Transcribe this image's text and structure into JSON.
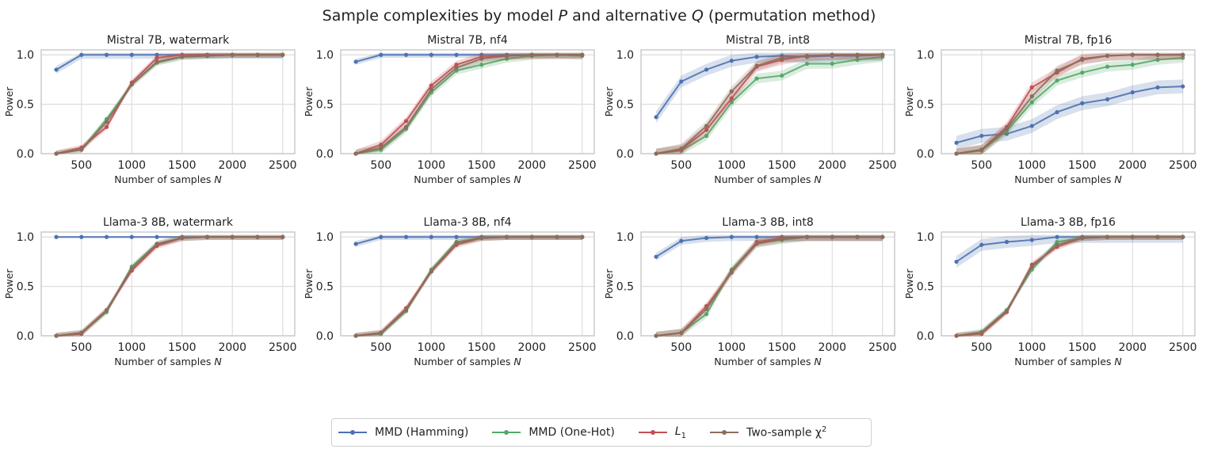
{
  "figure": {
    "title_prefix": "Sample complexities by model ",
    "title_p": "P",
    "title_mid": " and alternative ",
    "title_q": "Q",
    "title_suffix": " (permutation method)"
  },
  "legend": [
    {
      "name": "MMD (Hamming)",
      "color": "#4c72b0"
    },
    {
      "name": "MMD (One-Hot)",
      "color": "#55a868"
    },
    {
      "name": "L",
      "sub": "1",
      "color": "#c44e52"
    },
    {
      "name": "Two-sample χ",
      "sup": "2",
      "color": "#8c6d5c"
    }
  ],
  "chart_data": [
    {
      "type": "line",
      "title": "Mistral 7B, watermark",
      "xlabel": "Number of samples",
      "xvar": "N",
      "ylabel": "Power",
      "xticks": [
        500,
        1000,
        1500,
        2000,
        2500
      ],
      "yticks": [
        "0.0",
        "0.5",
        "1.0"
      ],
      "xlim": [
        100,
        2620
      ],
      "ylim": [
        0,
        1.05
      ],
      "x": [
        250,
        500,
        750,
        1000,
        1250,
        1500,
        1750,
        2000,
        2250,
        2500
      ],
      "series": [
        {
          "name": "MMD (Hamming)",
          "values": [
            0.85,
            1.0,
            1.0,
            1.0,
            1.0,
            1.0,
            1.0,
            1.0,
            1.0,
            1.0
          ],
          "band": 0.04
        },
        {
          "name": "MMD (One-Hot)",
          "values": [
            0.0,
            0.04,
            0.35,
            0.7,
            0.92,
            0.98,
            0.99,
            1.0,
            1.0,
            1.0
          ],
          "band": 0.03
        },
        {
          "name": "L1",
          "values": [
            0.0,
            0.06,
            0.27,
            0.72,
            0.97,
            1.0,
            1.0,
            1.0,
            1.0,
            1.0
          ],
          "band": 0.03
        },
        {
          "name": "Two-sample χ2",
          "values": [
            0.0,
            0.04,
            0.32,
            0.7,
            0.93,
            0.98,
            0.99,
            1.0,
            1.0,
            1.0
          ],
          "band": 0.03
        }
      ]
    },
    {
      "type": "line",
      "title": "Mistral 7B, nf4",
      "xlabel": "Number of samples",
      "xvar": "N",
      "ylabel": "Power",
      "xticks": [
        500,
        1000,
        1500,
        2000,
        2500
      ],
      "yticks": [
        "0.0",
        "0.5",
        "1.0"
      ],
      "xlim": [
        100,
        2620
      ],
      "ylim": [
        0,
        1.05
      ],
      "x": [
        250,
        500,
        750,
        1000,
        1250,
        1500,
        1750,
        2000,
        2250,
        2500
      ],
      "series": [
        {
          "name": "MMD (Hamming)",
          "values": [
            0.93,
            1.0,
            1.0,
            1.0,
            1.0,
            1.0,
            1.0,
            1.0,
            1.0,
            1.0
          ],
          "band": 0.03
        },
        {
          "name": "MMD (One-Hot)",
          "values": [
            0.0,
            0.04,
            0.25,
            0.62,
            0.84,
            0.9,
            0.96,
            0.99,
            1.0,
            0.99
          ],
          "band": 0.04
        },
        {
          "name": "L1",
          "values": [
            0.0,
            0.09,
            0.33,
            0.69,
            0.9,
            0.98,
            0.99,
            1.0,
            1.0,
            1.0
          ],
          "band": 0.04
        },
        {
          "name": "Two-sample χ2",
          "values": [
            0.0,
            0.06,
            0.27,
            0.65,
            0.87,
            0.96,
            0.99,
            1.0,
            1.0,
            1.0
          ],
          "band": 0.04
        }
      ]
    },
    {
      "type": "line",
      "title": "Mistral 7B, int8",
      "xlabel": "Number of samples",
      "xvar": "N",
      "ylabel": "Power",
      "xticks": [
        500,
        1000,
        1500,
        2000,
        2500
      ],
      "yticks": [
        "0.0",
        "0.5",
        "1.0"
      ],
      "xlim": [
        100,
        2620
      ],
      "ylim": [
        0,
        1.05
      ],
      "x": [
        250,
        500,
        750,
        1000,
        1250,
        1500,
        1750,
        2000,
        2250,
        2500
      ],
      "series": [
        {
          "name": "MMD (Hamming)",
          "values": [
            0.37,
            0.73,
            0.85,
            0.94,
            0.98,
            0.99,
            0.98,
            0.99,
            0.99,
            1.0
          ],
          "band": 0.06
        },
        {
          "name": "MMD (One-Hot)",
          "values": [
            0.0,
            0.03,
            0.18,
            0.52,
            0.76,
            0.79,
            0.91,
            0.91,
            0.95,
            0.98
          ],
          "band": 0.05
        },
        {
          "name": "L1",
          "values": [
            0.0,
            0.04,
            0.24,
            0.56,
            0.88,
            0.95,
            0.99,
            1.0,
            1.0,
            1.0
          ],
          "band": 0.05
        },
        {
          "name": "Two-sample χ2",
          "values": [
            0.0,
            0.05,
            0.28,
            0.63,
            0.89,
            0.97,
            0.99,
            1.0,
            1.0,
            1.0
          ],
          "band": 0.05
        }
      ]
    },
    {
      "type": "line",
      "title": "Mistral 7B, fp16",
      "xlabel": "Number of samples",
      "xvar": "N",
      "ylabel": "Power",
      "xticks": [
        500,
        1000,
        1500,
        2000,
        2500
      ],
      "yticks": [
        "0.0",
        "0.5",
        "1.0"
      ],
      "xlim": [
        100,
        2620
      ],
      "ylim": [
        0,
        1.05
      ],
      "x": [
        250,
        500,
        750,
        1000,
        1250,
        1500,
        1750,
        2000,
        2250,
        2500
      ],
      "series": [
        {
          "name": "MMD (Hamming)",
          "values": [
            0.11,
            0.18,
            0.2,
            0.28,
            0.42,
            0.51,
            0.55,
            0.62,
            0.67,
            0.68
          ],
          "band": 0.07
        },
        {
          "name": "MMD (One-Hot)",
          "values": [
            0.0,
            0.03,
            0.23,
            0.52,
            0.74,
            0.82,
            0.88,
            0.9,
            0.95,
            0.97
          ],
          "band": 0.05
        },
        {
          "name": "L1",
          "values": [
            0.0,
            0.04,
            0.27,
            0.67,
            0.82,
            0.96,
            0.99,
            1.0,
            1.0,
            1.0
          ],
          "band": 0.05
        },
        {
          "name": "Two-sample χ2",
          "values": [
            0.0,
            0.04,
            0.25,
            0.58,
            0.84,
            0.95,
            0.99,
            1.0,
            1.0,
            1.0
          ],
          "band": 0.05
        }
      ]
    },
    {
      "type": "line",
      "title": "Llama-3 8B, watermark",
      "xlabel": "Number of samples",
      "xvar": "N",
      "ylabel": "Power",
      "xticks": [
        500,
        1000,
        1500,
        2000,
        2500
      ],
      "yticks": [
        "0.0",
        "0.5",
        "1.0"
      ],
      "xlim": [
        100,
        2620
      ],
      "ylim": [
        0,
        1.05
      ],
      "x": [
        250,
        500,
        750,
        1000,
        1250,
        1500,
        1750,
        2000,
        2250,
        2500
      ],
      "series": [
        {
          "name": "MMD (Hamming)",
          "values": [
            1.0,
            1.0,
            1.0,
            1.0,
            1.0,
            1.0,
            1.0,
            1.0,
            1.0,
            1.0
          ],
          "band": 0.01
        },
        {
          "name": "MMD (One-Hot)",
          "values": [
            0.0,
            0.03,
            0.24,
            0.7,
            0.93,
            0.99,
            1.0,
            1.0,
            1.0,
            1.0
          ],
          "band": 0.03
        },
        {
          "name": "L1",
          "values": [
            0.0,
            0.02,
            0.26,
            0.66,
            0.91,
            0.99,
            1.0,
            1.0,
            1.0,
            1.0
          ],
          "band": 0.03
        },
        {
          "name": "Two-sample χ2",
          "values": [
            0.0,
            0.03,
            0.26,
            0.68,
            0.93,
            0.99,
            1.0,
            1.0,
            1.0,
            1.0
          ],
          "band": 0.03
        }
      ]
    },
    {
      "type": "line",
      "title": "Llama-3 8B, nf4",
      "xlabel": "Number of samples",
      "xvar": "N",
      "ylabel": "Power",
      "xticks": [
        500,
        1000,
        1500,
        2000,
        2500
      ],
      "yticks": [
        "0.0",
        "0.5",
        "1.0"
      ],
      "xlim": [
        100,
        2620
      ],
      "ylim": [
        0,
        1.05
      ],
      "x": [
        250,
        500,
        750,
        1000,
        1250,
        1500,
        1750,
        2000,
        2250,
        2500
      ],
      "series": [
        {
          "name": "MMD (Hamming)",
          "values": [
            0.93,
            1.0,
            1.0,
            1.0,
            1.0,
            1.0,
            1.0,
            1.0,
            1.0,
            1.0
          ],
          "band": 0.03
        },
        {
          "name": "MMD (One-Hot)",
          "values": [
            0.0,
            0.02,
            0.25,
            0.67,
            0.95,
            0.99,
            1.0,
            1.0,
            1.0,
            1.0
          ],
          "band": 0.03
        },
        {
          "name": "L1",
          "values": [
            0.0,
            0.03,
            0.28,
            0.65,
            0.92,
            0.99,
            1.0,
            1.0,
            1.0,
            1.0
          ],
          "band": 0.03
        },
        {
          "name": "Two-sample χ2",
          "values": [
            0.0,
            0.03,
            0.26,
            0.65,
            0.94,
            0.99,
            1.0,
            1.0,
            1.0,
            1.0
          ],
          "band": 0.03
        }
      ]
    },
    {
      "type": "line",
      "title": "Llama-3 8B, int8",
      "xlabel": "Number of samples",
      "xvar": "N",
      "ylabel": "Power",
      "xticks": [
        500,
        1000,
        1500,
        2000,
        2500
      ],
      "yticks": [
        "0.0",
        "0.5",
        "1.0"
      ],
      "xlim": [
        100,
        2620
      ],
      "ylim": [
        0,
        1.05
      ],
      "x": [
        250,
        500,
        750,
        1000,
        1250,
        1500,
        1750,
        2000,
        2250,
        2500
      ],
      "series": [
        {
          "name": "MMD (Hamming)",
          "values": [
            0.8,
            0.96,
            0.99,
            1.0,
            1.0,
            1.0,
            1.0,
            1.0,
            1.0,
            1.0
          ],
          "band": 0.04
        },
        {
          "name": "MMD (One-Hot)",
          "values": [
            0.0,
            0.03,
            0.22,
            0.67,
            0.94,
            0.97,
            1.0,
            1.0,
            1.0,
            1.0
          ],
          "band": 0.04
        },
        {
          "name": "L1",
          "values": [
            0.0,
            0.03,
            0.3,
            0.64,
            0.95,
            0.99,
            1.0,
            1.0,
            1.0,
            1.0
          ],
          "band": 0.04
        },
        {
          "name": "Two-sample χ2",
          "values": [
            0.0,
            0.03,
            0.27,
            0.65,
            0.93,
            0.98,
            1.0,
            1.0,
            1.0,
            1.0
          ],
          "band": 0.04
        }
      ]
    },
    {
      "type": "line",
      "title": "Llama-3 8B, fp16",
      "xlabel": "Number of samples",
      "xvar": "N",
      "ylabel": "Power",
      "xticks": [
        500,
        1000,
        1500,
        2000,
        2500
      ],
      "yticks": [
        "0.0",
        "0.5",
        "1.0"
      ],
      "xlim": [
        100,
        2620
      ],
      "ylim": [
        0,
        1.05
      ],
      "x": [
        250,
        500,
        750,
        1000,
        1250,
        1500,
        1750,
        2000,
        2250,
        2500
      ],
      "series": [
        {
          "name": "MMD (Hamming)",
          "values": [
            0.75,
            0.92,
            0.95,
            0.97,
            1.0,
            1.0,
            1.0,
            1.0,
            1.0,
            1.0
          ],
          "band": 0.06
        },
        {
          "name": "MMD (One-Hot)",
          "values": [
            0.0,
            0.04,
            0.26,
            0.67,
            0.95,
            0.99,
            1.0,
            1.0,
            1.0,
            1.0
          ],
          "band": 0.03
        },
        {
          "name": "L1",
          "values": [
            0.0,
            0.02,
            0.24,
            0.72,
            0.9,
            0.99,
            1.0,
            1.0,
            1.0,
            1.0
          ],
          "band": 0.03
        },
        {
          "name": "Two-sample χ2",
          "values": [
            0.0,
            0.03,
            0.25,
            0.7,
            0.92,
            0.99,
            1.0,
            1.0,
            1.0,
            1.0
          ],
          "band": 0.03
        }
      ]
    }
  ]
}
